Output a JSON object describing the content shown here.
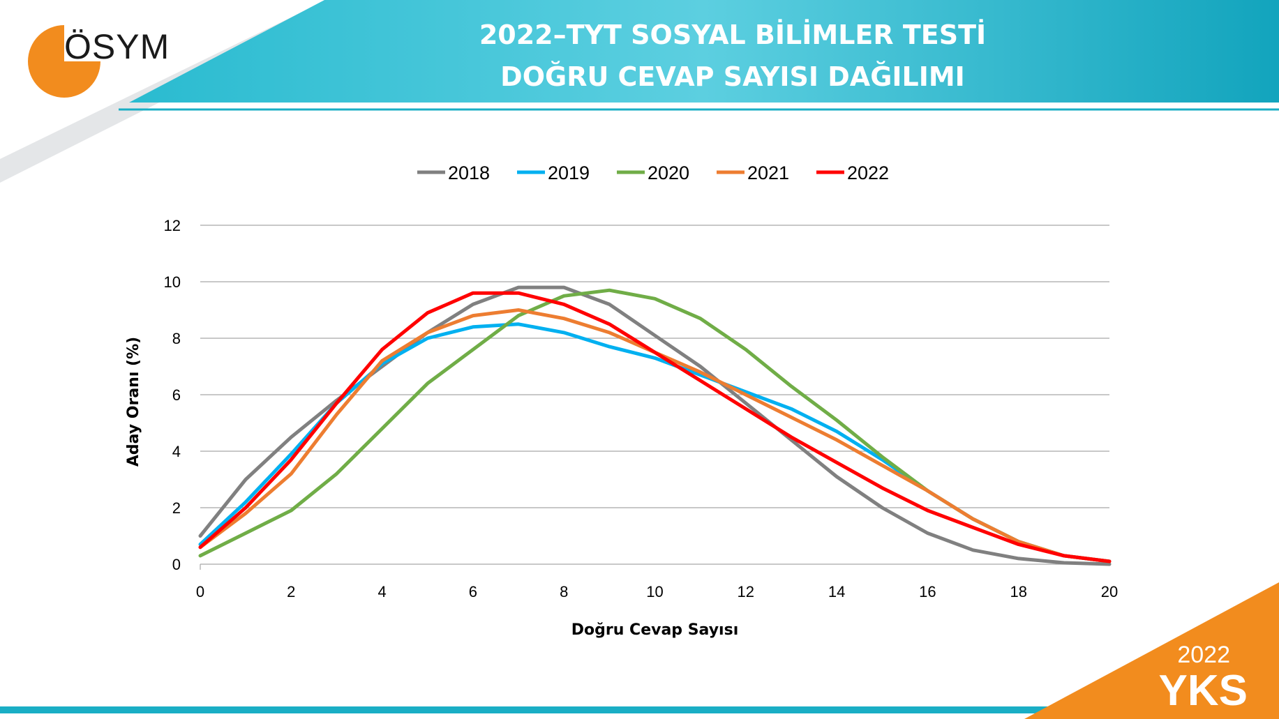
{
  "header": {
    "title_line1": "2022–TYT SOSYAL BİLİMLER TESTİ",
    "title_line2": "DOĞRU CEVAP SAYISI DAĞILIMI"
  },
  "logo": {
    "text": "ÖSYM",
    "color": "#F28C1E"
  },
  "badge": {
    "year": "2022",
    "label": "YKS",
    "color": "#F28C1E"
  },
  "theme": {
    "header_color": "#1AAEC5",
    "footer_color": "#1AAEC5"
  },
  "chart_data": {
    "type": "line",
    "title": "",
    "xlabel": "Doğru Cevap Sayısı",
    "ylabel": "Aday Oranı (%)",
    "xlim": [
      0,
      20
    ],
    "ylim": [
      0,
      12
    ],
    "x_ticks": [
      0,
      2,
      4,
      6,
      8,
      10,
      12,
      14,
      16,
      18,
      20
    ],
    "y_ticks": [
      0,
      2,
      4,
      6,
      8,
      10,
      12
    ],
    "grid": "horizontal",
    "legend_position": "top",
    "x": [
      0,
      1,
      2,
      3,
      4,
      5,
      6,
      7,
      8,
      9,
      10,
      11,
      12,
      13,
      14,
      15,
      16,
      17,
      18,
      19,
      20
    ],
    "series": [
      {
        "name": "2018",
        "color": "#808080",
        "values": [
          1.0,
          3.0,
          4.5,
          5.8,
          7.0,
          8.2,
          9.2,
          9.8,
          9.8,
          9.2,
          8.1,
          7.0,
          5.7,
          4.4,
          3.1,
          2.0,
          1.1,
          0.5,
          0.2,
          0.05,
          0.0
        ]
      },
      {
        "name": "2019",
        "color": "#00B0F0",
        "values": [
          0.7,
          2.2,
          3.9,
          5.7,
          7.1,
          8.0,
          8.4,
          8.5,
          8.2,
          7.7,
          7.3,
          6.7,
          6.1,
          5.5,
          4.7,
          3.7,
          2.6,
          1.6,
          0.8,
          0.3,
          0.1
        ]
      },
      {
        "name": "2020",
        "color": "#70AD47",
        "values": [
          0.3,
          1.1,
          1.9,
          3.2,
          4.8,
          6.4,
          7.6,
          8.8,
          9.5,
          9.7,
          9.4,
          8.7,
          7.6,
          6.3,
          5.1,
          3.8,
          2.6,
          1.6,
          0.8,
          0.3,
          0.1
        ]
      },
      {
        "name": "2021",
        "color": "#ED7D31",
        "values": [
          0.6,
          1.8,
          3.2,
          5.3,
          7.2,
          8.2,
          8.8,
          9.0,
          8.7,
          8.2,
          7.5,
          6.8,
          6.0,
          5.2,
          4.4,
          3.5,
          2.6,
          1.6,
          0.8,
          0.3,
          0.1
        ]
      },
      {
        "name": "2022",
        "color": "#FF0000",
        "values": [
          0.6,
          2.0,
          3.7,
          5.7,
          7.6,
          8.9,
          9.6,
          9.6,
          9.2,
          8.5,
          7.5,
          6.5,
          5.5,
          4.5,
          3.6,
          2.7,
          1.9,
          1.3,
          0.7,
          0.3,
          0.1
        ]
      }
    ]
  }
}
